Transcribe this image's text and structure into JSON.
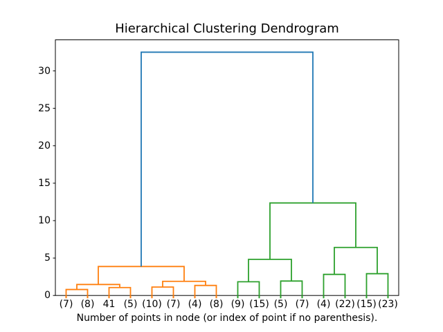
{
  "chart_data": {
    "type": "dendrogram",
    "title": "Hierarchical Clustering Dendrogram",
    "xlabel": "Number of points in node (or index of point if no parenthesis).",
    "xlim": [
      0,
      160
    ],
    "ylim": [
      0,
      34.15
    ],
    "yticks": [
      0,
      5,
      10,
      15,
      20,
      25,
      30
    ],
    "grid": false,
    "legend_position": "none",
    "colors": {
      "above_threshold_link": "#1f77b4",
      "left_cluster_link": "#ff7f0e",
      "right_cluster_link": "#2ca02c",
      "axis": "#000000",
      "background": "#ffffff"
    },
    "leaves": [
      {
        "label": "(7)",
        "x": 5,
        "tick_color": "#ff7f0e"
      },
      {
        "label": "(8)",
        "x": 15,
        "tick_color": "#ff7f0e"
      },
      {
        "label": "41",
        "x": 25,
        "tick_color": "#ff7f0e"
      },
      {
        "label": "(5)",
        "x": 35,
        "tick_color": "#ff7f0e"
      },
      {
        "label": "(10)",
        "x": 45,
        "tick_color": "#ff7f0e"
      },
      {
        "label": "(7)",
        "x": 55,
        "tick_color": "#ff7f0e"
      },
      {
        "label": "(4)",
        "x": 65,
        "tick_color": "#ff7f0e"
      },
      {
        "label": "(8)",
        "x": 75,
        "tick_color": "#ff7f0e"
      },
      {
        "label": "(9)",
        "x": 85,
        "tick_color": "#2ca02c"
      },
      {
        "label": "(15)",
        "x": 95,
        "tick_color": "#2ca02c"
      },
      {
        "label": "(5)",
        "x": 105,
        "tick_color": "#2ca02c"
      },
      {
        "label": "(7)",
        "x": 115,
        "tick_color": "#2ca02c"
      },
      {
        "label": "(4)",
        "x": 125,
        "tick_color": "#2ca02c"
      },
      {
        "label": "(22)",
        "x": 135,
        "tick_color": "#2ca02c"
      },
      {
        "label": "(15)",
        "x": 145,
        "tick_color": "#2ca02c"
      },
      {
        "label": "(23)",
        "x": 155,
        "tick_color": "#2ca02c"
      }
    ],
    "links": [
      {
        "x1": 5,
        "x2": 15,
        "h": 0.8,
        "h1": 0,
        "h2": 0,
        "color": "#ff7f0e"
      },
      {
        "x1": 25,
        "x2": 35,
        "h": 1.06,
        "h1": 0,
        "h2": 0,
        "color": "#ff7f0e"
      },
      {
        "x1": 10,
        "x2": 30,
        "h": 1.47,
        "h1": 0.8,
        "h2": 1.06,
        "color": "#ff7f0e"
      },
      {
        "x1": 45,
        "x2": 55,
        "h": 1.13,
        "h1": 0,
        "h2": 0,
        "color": "#ff7f0e"
      },
      {
        "x1": 65,
        "x2": 75,
        "h": 1.34,
        "h1": 0,
        "h2": 0,
        "color": "#ff7f0e"
      },
      {
        "x1": 50,
        "x2": 70,
        "h": 1.89,
        "h1": 1.13,
        "h2": 1.34,
        "color": "#ff7f0e"
      },
      {
        "x1": 20,
        "x2": 60,
        "h": 3.87,
        "h1": 1.47,
        "h2": 1.89,
        "color": "#ff7f0e"
      },
      {
        "x1": 85,
        "x2": 95,
        "h": 1.83,
        "h1": 0,
        "h2": 0,
        "color": "#2ca02c"
      },
      {
        "x1": 105,
        "x2": 115,
        "h": 1.93,
        "h1": 0,
        "h2": 0,
        "color": "#2ca02c"
      },
      {
        "x1": 90,
        "x2": 110,
        "h": 4.82,
        "h1": 1.83,
        "h2": 1.93,
        "color": "#2ca02c"
      },
      {
        "x1": 125,
        "x2": 135,
        "h": 2.82,
        "h1": 0,
        "h2": 0,
        "color": "#2ca02c"
      },
      {
        "x1": 145,
        "x2": 155,
        "h": 2.91,
        "h1": 0,
        "h2": 0,
        "color": "#2ca02c"
      },
      {
        "x1": 130,
        "x2": 150,
        "h": 6.42,
        "h1": 2.82,
        "h2": 2.91,
        "color": "#2ca02c"
      },
      {
        "x1": 100,
        "x2": 140,
        "h": 12.36,
        "h1": 4.82,
        "h2": 6.42,
        "color": "#2ca02c"
      },
      {
        "x1": 40,
        "x2": 120,
        "h": 32.5,
        "h1": 3.87,
        "h2": 12.36,
        "color": "#1f77b4"
      }
    ]
  }
}
